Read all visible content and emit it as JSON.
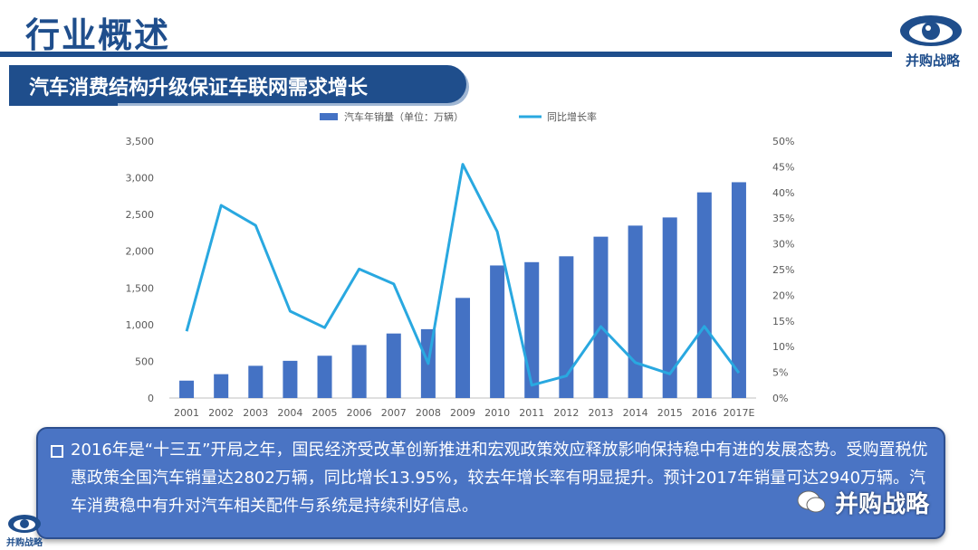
{
  "header": {
    "title": "行业概述"
  },
  "logo": {
    "text": "并购战略"
  },
  "banner": {
    "text": "汽车消费结构升级保证车联网需求增长"
  },
  "chart_data": {
    "type": "bar",
    "categories": [
      "2001",
      "2002",
      "2003",
      "2004",
      "2005",
      "2006",
      "2007",
      "2008",
      "2009",
      "2010",
      "2011",
      "2012",
      "2013",
      "2014",
      "2015",
      "2016",
      "2017E"
    ],
    "series": [
      {
        "name": "汽车年销量（单位：万辆）",
        "type": "bar",
        "axis": "left",
        "values": [
          237,
          325,
          439,
          507,
          576,
          722,
          879,
          938,
          1364,
          1806,
          1851,
          1931,
          2198,
          2349,
          2460,
          2802,
          2940
        ]
      },
      {
        "name": "同比增长率",
        "type": "line",
        "axis": "right",
        "values": [
          13.0,
          37.5,
          33.6,
          16.9,
          13.7,
          25.1,
          22.2,
          6.7,
          45.5,
          32.4,
          2.5,
          4.3,
          13.9,
          6.9,
          4.7,
          13.95,
          4.9
        ]
      }
    ],
    "y_left_ticks": [
      "0",
      "500",
      "1,000",
      "1,500",
      "2,000",
      "2,500",
      "3,000",
      "3,500"
    ],
    "y_right_ticks": [
      "0%",
      "5%",
      "10%",
      "15%",
      "20%",
      "25%",
      "30%",
      "35%",
      "40%",
      "45%",
      "50%"
    ],
    "ylim_left": [
      0,
      3500
    ],
    "ylim_right": [
      0,
      50
    ],
    "legend_position": "top",
    "colors": {
      "bar": "#4472c4",
      "line": "#29a8e0"
    }
  },
  "info": {
    "text": "2016年是“十三五”开局之年，国民经济受改革创新推进和宏观政策效应释放影响保持稳中有进的发展态势。受购置税优惠政策全国汽车销量达2802万辆，同比增长13.95%，较去年增长率有明显提升。预计2017年销量可达2940万辆。汽车消费稳中有升对汽车相关配件与系统是持续利好信息。"
  },
  "watermark": {
    "text": "并购战略"
  },
  "bottom_logo": {
    "text": "并购战略"
  }
}
